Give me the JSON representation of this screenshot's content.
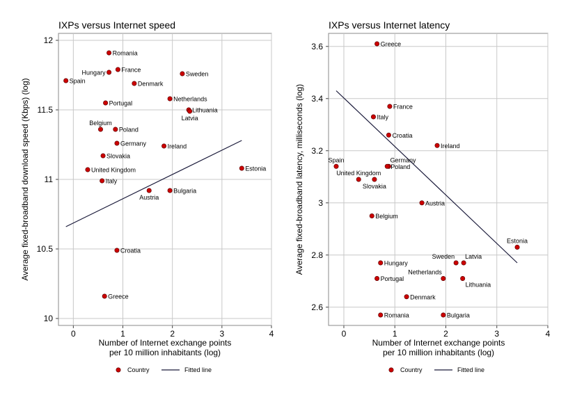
{
  "chart_data": [
    {
      "type": "scatter",
      "title": "IXPs versus Internet speed",
      "xlabel": [
        "Number of Internet exchange points",
        "per 10 million inhabitants (log)"
      ],
      "ylabel": "Average fixed-broadband download speed (Kbps) (log)",
      "xlim": [
        -0.3,
        4.0
      ],
      "ylim": [
        9.95,
        12.05
      ],
      "xticks": [
        0,
        1,
        2,
        3,
        4
      ],
      "yticks": [
        10,
        10.5,
        11,
        11.5,
        12
      ],
      "xtick_labels": [
        "0",
        "1",
        "2",
        "3",
        "4"
      ],
      "ytick_labels": [
        "10",
        "10.5",
        "11",
        "11.5",
        "12"
      ],
      "grid": true,
      "legend": {
        "position": "bottom",
        "labels": [
          "Country",
          "Fitted line"
        ]
      },
      "point_color": "#cc0000",
      "line_color": "#1a1a3a",
      "points": [
        {
          "name": "Romania",
          "x": 0.72,
          "y": 11.91,
          "pos": "right"
        },
        {
          "name": "Hungary",
          "x": 0.72,
          "y": 11.77,
          "pos": "left"
        },
        {
          "name": "France",
          "x": 0.9,
          "y": 11.79,
          "pos": "right"
        },
        {
          "name": "Spain",
          "x": -0.15,
          "y": 11.71,
          "pos": "right"
        },
        {
          "name": "Denmark",
          "x": 1.23,
          "y": 11.69,
          "pos": "right"
        },
        {
          "name": "Sweden",
          "x": 2.2,
          "y": 11.76,
          "pos": "right"
        },
        {
          "name": "Netherlands",
          "x": 1.95,
          "y": 11.58,
          "pos": "right"
        },
        {
          "name": "Portugal",
          "x": 0.65,
          "y": 11.55,
          "pos": "right"
        },
        {
          "name": "Lithuania",
          "x": 2.33,
          "y": 11.5,
          "pos": "right"
        },
        {
          "name": "Latvia",
          "x": 2.35,
          "y": 11.49,
          "pos": "below"
        },
        {
          "name": "Belgium",
          "x": 0.55,
          "y": 11.36,
          "pos": "above"
        },
        {
          "name": "Poland",
          "x": 0.85,
          "y": 11.36,
          "pos": "right"
        },
        {
          "name": "Germany",
          "x": 0.88,
          "y": 11.26,
          "pos": "right"
        },
        {
          "name": "Ireland",
          "x": 1.83,
          "y": 11.24,
          "pos": "right"
        },
        {
          "name": "Slovakia",
          "x": 0.6,
          "y": 11.17,
          "pos": "right"
        },
        {
          "name": "United Kingdom",
          "x": 0.29,
          "y": 11.07,
          "pos": "right"
        },
        {
          "name": "Estonia",
          "x": 3.4,
          "y": 11.08,
          "pos": "right"
        },
        {
          "name": "Italy",
          "x": 0.58,
          "y": 10.99,
          "pos": "right"
        },
        {
          "name": "Austria",
          "x": 1.53,
          "y": 10.92,
          "pos": "below"
        },
        {
          "name": "Bulgaria",
          "x": 1.95,
          "y": 10.92,
          "pos": "right"
        },
        {
          "name": "Croatia",
          "x": 0.88,
          "y": 10.49,
          "pos": "right"
        },
        {
          "name": "Greece",
          "x": 0.63,
          "y": 10.16,
          "pos": "right"
        }
      ],
      "fitted_line": {
        "x": [
          -0.15,
          3.4
        ],
        "y": [
          10.66,
          11.28
        ]
      }
    },
    {
      "type": "scatter",
      "title": "IXPs versus Internet latency",
      "xlabel": [
        "Number of Internet exchange points",
        "per 10 million inhabitants (log)"
      ],
      "ylabel": "Average fixed-broadband latency, milliseconds (log)",
      "xlim": [
        -0.3,
        4.0
      ],
      "ylim": [
        2.53,
        3.65
      ],
      "xticks": [
        0,
        1,
        2,
        3,
        4
      ],
      "yticks": [
        2.6,
        2.8,
        3,
        3.2,
        3.4,
        3.6
      ],
      "xtick_labels": [
        "0",
        "1",
        "2",
        "3",
        "4"
      ],
      "ytick_labels": [
        "2.6",
        "2.8",
        "3",
        "3.2",
        "3.4",
        "3.6"
      ],
      "grid": true,
      "legend": {
        "position": "bottom",
        "labels": [
          "Country",
          "Fitted line"
        ]
      },
      "point_color": "#cc0000",
      "line_color": "#1a1a3a",
      "points": [
        {
          "name": "Greece",
          "x": 0.65,
          "y": 3.61,
          "pos": "right"
        },
        {
          "name": "France",
          "x": 0.9,
          "y": 3.37,
          "pos": "right"
        },
        {
          "name": "Italy",
          "x": 0.58,
          "y": 3.33,
          "pos": "right"
        },
        {
          "name": "Croatia",
          "x": 0.88,
          "y": 3.26,
          "pos": "right"
        },
        {
          "name": "Ireland",
          "x": 1.83,
          "y": 3.22,
          "pos": "right"
        },
        {
          "name": "Spain",
          "x": -0.15,
          "y": 3.14,
          "pos": "above"
        },
        {
          "name": "Germany",
          "x": 0.88,
          "y": 3.14,
          "pos": "aboveright"
        },
        {
          "name": "Poland",
          "x": 0.85,
          "y": 3.14,
          "pos": "right"
        },
        {
          "name": "United Kingdom",
          "x": 0.29,
          "y": 3.09,
          "pos": "above"
        },
        {
          "name": "Slovakia",
          "x": 0.6,
          "y": 3.09,
          "pos": "below"
        },
        {
          "name": "Austria",
          "x": 1.53,
          "y": 3.0,
          "pos": "right"
        },
        {
          "name": "Belgium",
          "x": 0.55,
          "y": 2.95,
          "pos": "right"
        },
        {
          "name": "Estonia",
          "x": 3.4,
          "y": 2.83,
          "pos": "above"
        },
        {
          "name": "Sweden",
          "x": 2.2,
          "y": 2.77,
          "pos": "aboveleft"
        },
        {
          "name": "Latvia",
          "x": 2.35,
          "y": 2.77,
          "pos": "aboveright"
        },
        {
          "name": "Hungary",
          "x": 0.72,
          "y": 2.77,
          "pos": "right"
        },
        {
          "name": "Netherlands",
          "x": 1.95,
          "y": 2.71,
          "pos": "aboveleft"
        },
        {
          "name": "Lithuania",
          "x": 2.33,
          "y": 2.71,
          "pos": "belowright"
        },
        {
          "name": "Portugal",
          "x": 0.65,
          "y": 2.71,
          "pos": "right"
        },
        {
          "name": "Denmark",
          "x": 1.23,
          "y": 2.64,
          "pos": "right"
        },
        {
          "name": "Romania",
          "x": 0.72,
          "y": 2.57,
          "pos": "right"
        },
        {
          "name": "Bulgaria",
          "x": 1.95,
          "y": 2.57,
          "pos": "right"
        }
      ],
      "fitted_line": {
        "x": [
          -0.15,
          3.4
        ],
        "y": [
          3.43,
          2.77
        ]
      }
    }
  ]
}
